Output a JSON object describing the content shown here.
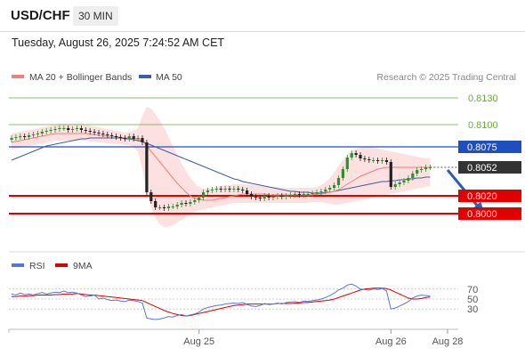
{
  "header": {
    "symbol": "USD/CHF",
    "timeframe": "30 MIN",
    "timestamp": "Tuesday, August 26, 2025 7:24:52 AM CET"
  },
  "credit": "Research © 2025 Trading Central",
  "colors": {
    "ma20": "#f08080",
    "ma50": "#3a5ea8",
    "band_fill": "#fde0e0",
    "resistance": "#1f4fbf",
    "support": "#e00000",
    "target_green": "#6aaa3a",
    "arrow": "#2e5fa8",
    "rsi": "#5577dd",
    "rsi_ma": "#dd0000"
  },
  "chart_data": [
    {
      "type": "candlestick",
      "legend": [
        "MA 20 + Bollinger Bands",
        "MA 50"
      ],
      "ylim": [
        0.7972,
        0.8142
      ],
      "x_ticks": [
        {
          "label": "Aug 25",
          "i": 43
        },
        {
          "label": "Aug 26",
          "i": 87
        },
        {
          "label": "Aug 28",
          "i": 100
        }
      ],
      "last_price": 0.8052,
      "levels": [
        {
          "label": "0.8130",
          "value": 0.813,
          "style": "green"
        },
        {
          "label": "0.8100",
          "value": 0.81,
          "style": "green"
        },
        {
          "label": "0.8075",
          "value": 0.8075,
          "style": "resistance"
        },
        {
          "label": "0.8020",
          "value": 0.802,
          "style": "support"
        },
        {
          "label": "0.8000",
          "value": 0.8,
          "style": "support"
        }
      ],
      "arrow": {
        "from": [
          100,
          0.8049
        ],
        "to": [
          108,
          0.8002
        ]
      },
      "closes": [
        0.8085,
        0.8086,
        0.8087,
        0.8086,
        0.8088,
        0.8089,
        0.809,
        0.8092,
        0.8093,
        0.8094,
        0.8095,
        0.8096,
        0.8096,
        0.8094,
        0.8095,
        0.8096,
        0.8094,
        0.8093,
        0.8092,
        0.8091,
        0.809,
        0.8089,
        0.8088,
        0.8087,
        0.8086,
        0.8085,
        0.8084,
        0.8087,
        0.8084,
        0.8085,
        0.808,
        0.8024,
        0.8014,
        0.8007,
        0.8007,
        0.8006,
        0.8008,
        0.8008,
        0.801,
        0.8012,
        0.8011,
        0.8013,
        0.8015,
        0.8018,
        0.8024,
        0.8026,
        0.8027,
        0.8028,
        0.8027,
        0.8028,
        0.8027,
        0.8028,
        0.8027,
        0.8026,
        0.8022,
        0.8019,
        0.8018,
        0.8017,
        0.802,
        0.8018,
        0.8019,
        0.802,
        0.8019,
        0.802,
        0.8021,
        0.8022,
        0.8021,
        0.8022,
        0.8022,
        0.8023,
        0.8024,
        0.8025,
        0.8027,
        0.8029,
        0.8032,
        0.804,
        0.805,
        0.8063,
        0.8068,
        0.8066,
        0.8062,
        0.8061,
        0.806,
        0.806,
        0.8059,
        0.806,
        0.8058,
        0.803,
        0.8033,
        0.8035,
        0.8037,
        0.804,
        0.8045,
        0.8049,
        0.805,
        0.8052,
        0.8052
      ],
      "ma20": [
        0.808,
        0.8081,
        0.8082,
        0.8083,
        0.8084,
        0.8085,
        0.8086,
        0.8087,
        0.8088,
        0.8089,
        0.809,
        0.809,
        0.809,
        0.809,
        0.809,
        0.809,
        0.809,
        0.809,
        0.8089,
        0.8089,
        0.8088,
        0.8088,
        0.8087,
        0.8087,
        0.8086,
        0.8086,
        0.8085,
        0.8085,
        0.8084,
        0.8084,
        0.8082,
        0.8076,
        0.807,
        0.8064,
        0.8058,
        0.8052,
        0.8046,
        0.804,
        0.8034,
        0.8029,
        0.8024,
        0.802,
        0.8017,
        0.8016,
        0.8015,
        0.8015,
        0.8015,
        0.8016,
        0.8017,
        0.8018,
        0.8019,
        0.802,
        0.8021,
        0.8022,
        0.8022,
        0.8022,
        0.8022,
        0.8022,
        0.8022,
        0.8021,
        0.8021,
        0.8021,
        0.8021,
        0.8021,
        0.8021,
        0.8021,
        0.8021,
        0.8021,
        0.8021,
        0.8021,
        0.8022,
        0.8022,
        0.8023,
        0.8024,
        0.8025,
        0.8027,
        0.803,
        0.8033,
        0.8036,
        0.8039,
        0.8042,
        0.8044,
        0.8046,
        0.8048,
        0.805,
        0.8051,
        0.8052,
        0.8052,
        0.8052,
        0.8052,
        0.8052,
        0.8052,
        0.8052,
        0.8052,
        0.8052,
        0.8052,
        0.8052
      ],
      "ma50": [
        0.806,
        0.8062,
        0.8064,
        0.8066,
        0.8068,
        0.807,
        0.8072,
        0.8074,
        0.8076,
        0.8077,
        0.8078,
        0.8079,
        0.808,
        0.8081,
        0.8082,
        0.8083,
        0.8084,
        0.8084,
        0.8085,
        0.8085,
        0.8085,
        0.8085,
        0.8085,
        0.8085,
        0.8085,
        0.8085,
        0.8084,
        0.8084,
        0.8083,
        0.8082,
        0.8081,
        0.8079,
        0.8077,
        0.8075,
        0.8073,
        0.8071,
        0.8069,
        0.8067,
        0.8065,
        0.8063,
        0.8061,
        0.8059,
        0.8057,
        0.8055,
        0.8053,
        0.8051,
        0.8049,
        0.8047,
        0.8045,
        0.8043,
        0.8041,
        0.8039,
        0.8038,
        0.8036,
        0.8035,
        0.8034,
        0.8033,
        0.8032,
        0.8031,
        0.803,
        0.8029,
        0.8028,
        0.8027,
        0.8026,
        0.8025,
        0.8025,
        0.8024,
        0.8024,
        0.8024,
        0.8023,
        0.8023,
        0.8023,
        0.8024,
        0.8024,
        0.8025,
        0.8026,
        0.8027,
        0.8028,
        0.8029,
        0.803,
        0.8031,
        0.8032,
        0.8033,
        0.8034,
        0.8035,
        0.8036,
        0.8036,
        0.8037,
        0.8037,
        0.8038,
        0.8038,
        0.8039,
        0.8039,
        0.804,
        0.804,
        0.8041,
        0.8041
      ],
      "bb_upper": [
        0.809,
        0.8091,
        0.8092,
        0.8093,
        0.8094,
        0.8095,
        0.8096,
        0.8097,
        0.8098,
        0.8099,
        0.81,
        0.8101,
        0.8101,
        0.8101,
        0.8101,
        0.8101,
        0.8101,
        0.81,
        0.8099,
        0.8098,
        0.8097,
        0.8096,
        0.8095,
        0.8094,
        0.8093,
        0.8092,
        0.8091,
        0.8092,
        0.8093,
        0.8096,
        0.811,
        0.812,
        0.8118,
        0.8112,
        0.8104,
        0.8096,
        0.8086,
        0.8076,
        0.8066,
        0.8056,
        0.8048,
        0.804,
        0.8034,
        0.803,
        0.8028,
        0.8028,
        0.8029,
        0.803,
        0.8031,
        0.8032,
        0.8032,
        0.8033,
        0.8033,
        0.8033,
        0.8033,
        0.8032,
        0.8032,
        0.8031,
        0.8031,
        0.803,
        0.803,
        0.803,
        0.8029,
        0.8029,
        0.8029,
        0.8029,
        0.8029,
        0.8029,
        0.8029,
        0.8029,
        0.803,
        0.8032,
        0.8035,
        0.804,
        0.8046,
        0.8054,
        0.806,
        0.8066,
        0.807,
        0.8073,
        0.8074,
        0.8075,
        0.8075,
        0.8074,
        0.8073,
        0.8072,
        0.8071,
        0.807,
        0.8069,
        0.8068,
        0.8067,
        0.8066,
        0.8065,
        0.8064,
        0.8063,
        0.8062,
        0.8062
      ],
      "bb_lower": [
        0.8072,
        0.8073,
        0.8074,
        0.8075,
        0.8076,
        0.8077,
        0.8078,
        0.8079,
        0.808,
        0.8081,
        0.8082,
        0.8082,
        0.8082,
        0.8082,
        0.8082,
        0.8082,
        0.8082,
        0.8082,
        0.8081,
        0.8081,
        0.808,
        0.808,
        0.8079,
        0.8079,
        0.8078,
        0.8078,
        0.8077,
        0.8077,
        0.8074,
        0.807,
        0.805,
        0.8025,
        0.8008,
        0.7995,
        0.7988,
        0.7985,
        0.7985,
        0.7987,
        0.799,
        0.7993,
        0.7996,
        0.7999,
        0.8002,
        0.8004,
        0.8005,
        0.8006,
        0.8007,
        0.8008,
        0.8009,
        0.801,
        0.8011,
        0.8012,
        0.8012,
        0.8012,
        0.8012,
        0.8012,
        0.8012,
        0.8012,
        0.8012,
        0.8012,
        0.8012,
        0.8012,
        0.8012,
        0.8012,
        0.8012,
        0.8012,
        0.8012,
        0.8012,
        0.8012,
        0.8013,
        0.8013,
        0.8013,
        0.8012,
        0.8011,
        0.801,
        0.801,
        0.8011,
        0.8012,
        0.8013,
        0.8014,
        0.8015,
        0.8016,
        0.8017,
        0.8018,
        0.8019,
        0.802,
        0.8021,
        0.8022,
        0.8023,
        0.8024,
        0.8025,
        0.8026,
        0.8027,
        0.8028,
        0.8029,
        0.803,
        0.8031
      ]
    },
    {
      "type": "line",
      "legend": [
        "RSI",
        "9MA"
      ],
      "ylim": [
        0,
        100
      ],
      "y_ticks": [
        70,
        50,
        30
      ],
      "rsi": [
        60,
        58,
        62,
        59,
        60,
        58,
        61,
        63,
        60,
        62,
        64,
        63,
        66,
        63,
        64,
        62,
        58,
        55,
        56,
        58,
        50,
        52,
        49,
        47,
        48,
        46,
        45,
        48,
        47,
        45,
        42,
        12,
        10,
        9,
        10,
        12,
        15,
        14,
        17,
        19,
        16,
        18,
        20,
        24,
        30,
        33,
        35,
        37,
        38,
        40,
        41,
        42,
        41,
        43,
        39,
        36,
        35,
        37,
        41,
        39,
        40,
        42,
        40,
        43,
        44,
        45,
        43,
        46,
        45,
        47,
        48,
        50,
        53,
        57,
        62,
        68,
        72,
        78,
        80,
        76,
        70,
        69,
        68,
        70,
        69,
        71,
        66,
        30,
        32,
        36,
        40,
        45,
        52,
        56,
        58,
        57,
        56
      ],
      "ma9": [
        55,
        55,
        56,
        56,
        57,
        57,
        58,
        58,
        58,
        58,
        59,
        59,
        60,
        60,
        60,
        61,
        60,
        59,
        58,
        58,
        57,
        56,
        55,
        54,
        53,
        52,
        51,
        50,
        49,
        48,
        47,
        43,
        39,
        35,
        31,
        27,
        24,
        21,
        19,
        17,
        16,
        17,
        19,
        21,
        23,
        25,
        27,
        29,
        31,
        33,
        35,
        37,
        38,
        39,
        40,
        40,
        40,
        40,
        40,
        40,
        40,
        41,
        41,
        41,
        41,
        42,
        42,
        43,
        43,
        44,
        45,
        46,
        47,
        48,
        50,
        53,
        56,
        59,
        62,
        65,
        68,
        70,
        71,
        72,
        72,
        72,
        71,
        68,
        64,
        60,
        56,
        52,
        50,
        50,
        51,
        53,
        54
      ]
    }
  ]
}
